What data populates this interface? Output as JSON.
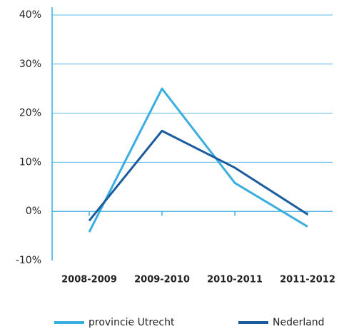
{
  "chart_data": {
    "type": "line",
    "categories": [
      "2008-2009",
      "2009-2010",
      "2010-2011",
      "2011-2012"
    ],
    "series": [
      {
        "name": "provincie Utrecht",
        "color": "#3aaee0",
        "values": [
          -4.2,
          25.0,
          5.8,
          -3.1
        ]
      },
      {
        "name": "Nederland",
        "color": "#1a5c9e",
        "values": [
          -1.9,
          16.4,
          8.9,
          -0.6
        ]
      }
    ],
    "ylim": [
      -10,
      40
    ],
    "yticks": [
      {
        "value": -10,
        "label": "-10%"
      },
      {
        "value": 0,
        "label": "0%"
      },
      {
        "value": 10,
        "label": "10%"
      },
      {
        "value": 20,
        "label": "20%"
      },
      {
        "value": 30,
        "label": "30%"
      },
      {
        "value": 40,
        "label": "40%"
      }
    ],
    "grid": true,
    "legend": "bottom"
  }
}
